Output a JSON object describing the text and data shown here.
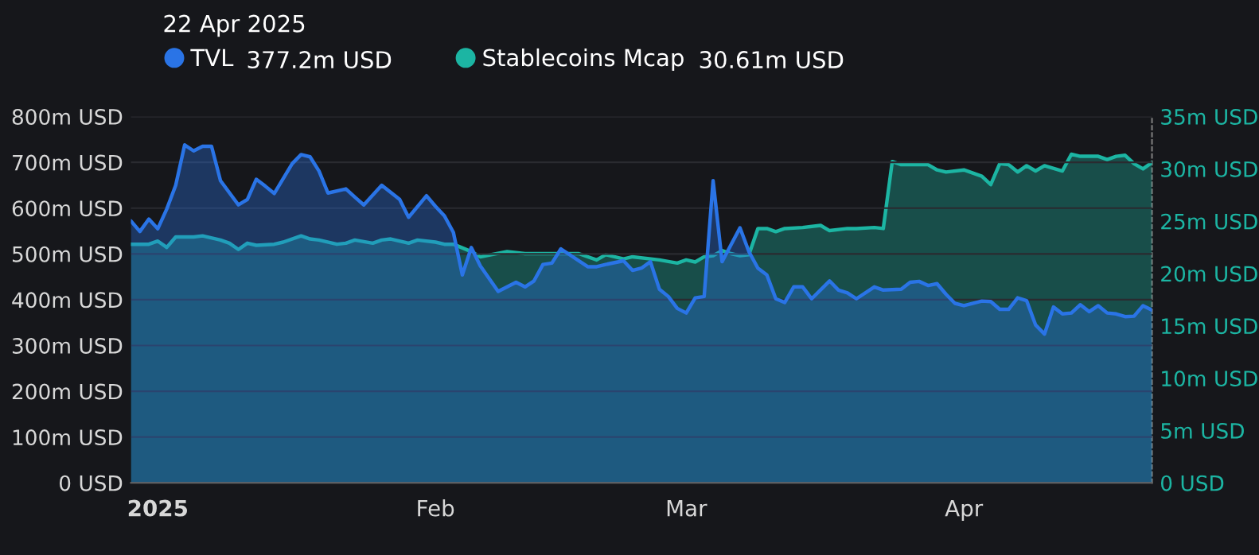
{
  "chart_data": {
    "type": "area",
    "annotations": [
      "22 Apr 2025",
      "377.2m USD",
      "30.61m USD"
    ],
    "series": [
      {
        "name": "TVL",
        "color": "#2a74e6",
        "axis": "y",
        "x": [
          "2024-12-29",
          "2024-12-30",
          "2024-12-31",
          "2025-01-01",
          "2025-01-02",
          "2025-01-03",
          "2025-01-04",
          "2025-01-05",
          "2025-01-06",
          "2025-01-07",
          "2025-01-08",
          "2025-01-10",
          "2025-01-11",
          "2025-01-12",
          "2025-01-13",
          "2025-01-14",
          "2025-01-16",
          "2025-01-17",
          "2025-01-18",
          "2025-01-19",
          "2025-01-20",
          "2025-01-22",
          "2025-01-23",
          "2025-01-24",
          "2025-01-26",
          "2025-01-28",
          "2025-01-29",
          "2025-01-31",
          "2025-02-01",
          "2025-02-02",
          "2025-02-03",
          "2025-02-04",
          "2025-02-05",
          "2025-02-06",
          "2025-02-08",
          "2025-02-10",
          "2025-02-11",
          "2025-02-12",
          "2025-02-13",
          "2025-02-14",
          "2025-02-15",
          "2025-02-18",
          "2025-02-19",
          "2025-02-20",
          "2025-02-22",
          "2025-02-23",
          "2025-02-24",
          "2025-02-25",
          "2025-02-26",
          "2025-02-27",
          "2025-02-28",
          "2025-03-01",
          "2025-03-02",
          "2025-03-03",
          "2025-03-04",
          "2025-03-05",
          "2025-03-07",
          "2025-03-08",
          "2025-03-09",
          "2025-03-10",
          "2025-03-11",
          "2025-03-12",
          "2025-03-13",
          "2025-03-14",
          "2025-03-15",
          "2025-03-17",
          "2025-03-18",
          "2025-03-19",
          "2025-03-20",
          "2025-03-22",
          "2025-03-23",
          "2025-03-25",
          "2025-03-26",
          "2025-03-27",
          "2025-03-28",
          "2025-03-29",
          "2025-03-30",
          "2025-03-31",
          "2025-04-01",
          "2025-04-03",
          "2025-04-04",
          "2025-04-05",
          "2025-04-06",
          "2025-04-07",
          "2025-04-08",
          "2025-04-09",
          "2025-04-10",
          "2025-04-11",
          "2025-04-12",
          "2025-04-13",
          "2025-04-14",
          "2025-04-15",
          "2025-04-16",
          "2025-04-17",
          "2025-04-18",
          "2025-04-19",
          "2025-04-20",
          "2025-04-21",
          "2025-04-22"
        ],
        "values": [
          572,
          549,
          576,
          555,
          598,
          650,
          738,
          725,
          735,
          735,
          660,
          607,
          619,
          663,
          648,
          632,
          697,
          717,
          712,
          681,
          633,
          642,
          624,
          607,
          650,
          619,
          580,
          627,
          604,
          583,
          547,
          454,
          514,
          474,
          418,
          438,
          428,
          441,
          477,
          480,
          511,
          472,
          472,
          477,
          485,
          464,
          469,
          483,
          423,
          407,
          381,
          371,
          404,
          407,
          660,
          483,
          557,
          505,
          469,
          454,
          402,
          394,
          428,
          428,
          402,
          441,
          421,
          415,
          402,
          428,
          421,
          423,
          438,
          440,
          431,
          435,
          412,
          392,
          387,
          397,
          396,
          379,
          379,
          404,
          398,
          345,
          325,
          384,
          369,
          371,
          389,
          374,
          387,
          371,
          369,
          363,
          364,
          387,
          377.2
        ]
      },
      {
        "name": "Stablecoins Mcap",
        "color": "#1cb5a3",
        "axis": "y2",
        "x": [
          "2024-12-29",
          "2024-12-31",
          "2025-01-01",
          "2025-01-02",
          "2025-01-03",
          "2025-01-05",
          "2025-01-06",
          "2025-01-08",
          "2025-01-09",
          "2025-01-10",
          "2025-01-11",
          "2025-01-12",
          "2025-01-14",
          "2025-01-15",
          "2025-01-17",
          "2025-01-18",
          "2025-01-19",
          "2025-01-21",
          "2025-01-22",
          "2025-01-23",
          "2025-01-25",
          "2025-01-26",
          "2025-01-27",
          "2025-01-29",
          "2025-01-30",
          "2025-02-01",
          "2025-02-02",
          "2025-02-03",
          "2025-02-05",
          "2025-02-06",
          "2025-02-09",
          "2025-02-11",
          "2025-02-13",
          "2025-02-14",
          "2025-02-17",
          "2025-02-19",
          "2025-02-20",
          "2025-02-22",
          "2025-02-23",
          "2025-02-26",
          "2025-02-28",
          "2025-03-01",
          "2025-03-02",
          "2025-03-03",
          "2025-03-04",
          "2025-03-05",
          "2025-03-06",
          "2025-03-07",
          "2025-03-08",
          "2025-03-09",
          "2025-03-10",
          "2025-03-11",
          "2025-03-12",
          "2025-03-14",
          "2025-03-16",
          "2025-03-17",
          "2025-03-19",
          "2025-03-20",
          "2025-03-22",
          "2025-03-23",
          "2025-03-24",
          "2025-03-25",
          "2025-03-27",
          "2025-03-28",
          "2025-03-29",
          "2025-03-30",
          "2025-04-01",
          "2025-04-03",
          "2025-04-04",
          "2025-04-05",
          "2025-04-06",
          "2025-04-07",
          "2025-04-08",
          "2025-04-09",
          "2025-04-10",
          "2025-04-12",
          "2025-04-13",
          "2025-04-14",
          "2025-04-16",
          "2025-04-17",
          "2025-04-18",
          "2025-04-19",
          "2025-04-20",
          "2025-04-21",
          "2025-04-22"
        ],
        "values": [
          22.8,
          22.8,
          23.1,
          22.5,
          23.5,
          23.5,
          23.6,
          23.2,
          22.9,
          22.3,
          22.9,
          22.7,
          22.8,
          23.0,
          23.6,
          23.3,
          23.2,
          22.8,
          22.9,
          23.2,
          22.9,
          23.2,
          23.3,
          22.9,
          23.2,
          23.0,
          22.8,
          22.8,
          22.1,
          21.6,
          22.1,
          21.9,
          21.9,
          21.9,
          21.9,
          21.3,
          21.8,
          21.4,
          21.6,
          21.3,
          21.0,
          21.3,
          21.1,
          21.6,
          21.7,
          22.2,
          21.9,
          21.7,
          21.8,
          24.3,
          24.3,
          24.0,
          24.3,
          24.4,
          24.6,
          24.1,
          24.3,
          24.3,
          24.4,
          24.3,
          30.7,
          30.4,
          30.4,
          30.4,
          29.9,
          29.7,
          29.9,
          29.3,
          28.5,
          30.5,
          30.4,
          29.7,
          30.3,
          29.8,
          30.3,
          29.8,
          31.4,
          31.2,
          31.2,
          30.9,
          31.2,
          31.3,
          30.5,
          30.0,
          30.61
        ]
      }
    ],
    "xlim": [
      "2024-12-29",
      "2025-04-22"
    ],
    "xticks": [
      {
        "value": "2025-01-01",
        "label": "2025"
      },
      {
        "value": "2025-02-01",
        "label": "Feb"
      },
      {
        "value": "2025-03-01",
        "label": "Mar"
      },
      {
        "value": "2025-04-01",
        "label": "Apr"
      }
    ],
    "ylim": [
      0,
      800
    ],
    "yticks": [
      {
        "value": 0,
        "label": "0 USD"
      },
      {
        "value": 100,
        "label": "100m USD"
      },
      {
        "value": 200,
        "label": "200m USD"
      },
      {
        "value": 300,
        "label": "300m USD"
      },
      {
        "value": 400,
        "label": "400m USD"
      },
      {
        "value": 500,
        "label": "500m USD"
      },
      {
        "value": 600,
        "label": "600m USD"
      },
      {
        "value": 700,
        "label": "700m USD"
      },
      {
        "value": 800,
        "label": "800m USD"
      }
    ],
    "y2lim": [
      0,
      35
    ],
    "y2ticks": [
      {
        "value": 0,
        "label": "0 USD"
      },
      {
        "value": 5,
        "label": "5m USD"
      },
      {
        "value": 10,
        "label": "10m USD"
      },
      {
        "value": 15,
        "label": "15m USD"
      },
      {
        "value": 20,
        "label": "20m USD"
      },
      {
        "value": 25,
        "label": "25m USD"
      },
      {
        "value": 30,
        "label": "30m USD"
      },
      {
        "value": 35,
        "label": "35m USD"
      }
    ],
    "grid": "y",
    "legend": "top left",
    "marker": "none",
    "line_style": "solid"
  }
}
